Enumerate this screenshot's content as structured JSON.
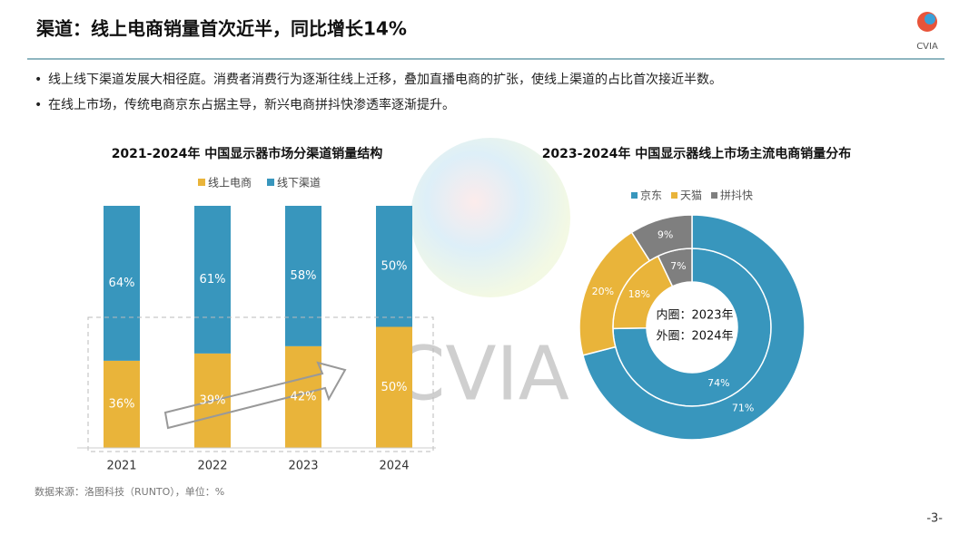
{
  "header": {
    "title": "渠道：线上电商销量首次近半，同比增长14%",
    "logo": "CVIA"
  },
  "bullets": [
    "线上线下渠道发展大相径庭。消费者消费行为逐渐往线上迁移，叠加直播电商的扩张，使线上渠道的占比首次接近半数。",
    "在线上市场，传统电商京东占据主导，新兴电商拼抖快渗透率逐渐提升。"
  ],
  "source": "数据来源：洛图科技（RUNTO），单位：%",
  "page_number": "-3-",
  "chart_data": [
    {
      "type": "stacked_bar",
      "title": "2021-2024年 中国显示器市场分渠道销量结构",
      "categories": [
        "2021",
        "2022",
        "2023",
        "2024"
      ],
      "series": [
        {
          "name": "线上电商",
          "color": "#e9b43a",
          "values": [
            36,
            39,
            42,
            50
          ],
          "value_labels": [
            "36%",
            "39%",
            "42%",
            "50%"
          ]
        },
        {
          "name": "线下渠道",
          "color": "#3896bd",
          "values": [
            64,
            61,
            58,
            50
          ],
          "value_labels": [
            "64%",
            "61%",
            "58%",
            "50%"
          ]
        }
      ]
    },
    {
      "type": "donut",
      "title": "2023-2024年 中国显示器线上市场主流电商销量分布",
      "categories": [
        "京东",
        "天猫",
        "拼抖快"
      ],
      "colors": [
        "#3896bd",
        "#e9b43a",
        "#7f7f7f"
      ],
      "annotations": [
        "内圈：2023年",
        "外圈：2024年"
      ],
      "series": [
        {
          "values": [
            74,
            18,
            7
          ],
          "value_labels": [
            "74%",
            "18%",
            "7%"
          ]
        },
        {
          "values": [
            71,
            20,
            9
          ],
          "value_labels": [
            "71%",
            "20%",
            "9%"
          ]
        }
      ]
    }
  ]
}
